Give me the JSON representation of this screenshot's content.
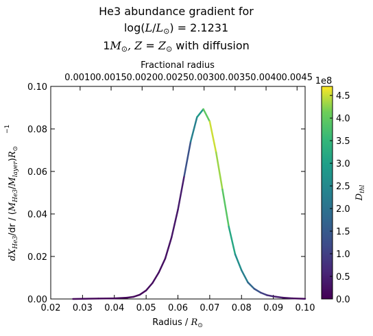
{
  "figure": {
    "title_line1": "He3 abundance gradient for",
    "title_line2_prefix": "log(",
    "title_line2_L": "L",
    "title_line2_sep": "/",
    "title_line2_Lsun": "L",
    "title_line2_sun": "⊙",
    "title_line2_suffix": ") = 2.1231",
    "title_line3_mass": "1",
    "title_line3_M": "M",
    "title_line3_sun": "⊙",
    "title_line3_Z": ", Z",
    "title_line3_eq": " = ",
    "title_line3_Zsun": "Z",
    "title_line3_sun2": "⊙",
    "title_line3_suffix": " with diffusion"
  },
  "axes": {
    "xlabel_text": "Radius / ",
    "xlabel_R": "R",
    "xlabel_sun": "⊙",
    "ylabel_full": "dX",
    "ylabel_sub": "He3",
    "ylabel_rest": "/dr / (",
    "ylabel_M": "M",
    "ylabel_He3": "He3",
    "ylabel_slash": "/",
    "ylabel_Mlayer": "M",
    "ylabel_layer": "layer",
    "ylabel_close": ")",
    "ylabel_R": "R",
    "ylabel_sun": "⊙",
    "ylabel_exp": "−1",
    "top_label": "Fractional radius",
    "colorbar_label": "D",
    "colorbar_label_sub": "thl",
    "colorbar_offset": "1e8"
  },
  "chart_data": {
    "type": "line",
    "title": "He3 abundance gradient for log(L/L⊙) = 2.1231, 1M⊙, Z = Z⊙ with diffusion",
    "xlabel": "Radius / R⊙",
    "ylabel": "dX_He3/dr / (M_He3/M_layer)R⊙^−1",
    "top_xlabel": "Fractional radius",
    "xlim": [
      0.02,
      0.1
    ],
    "ylim": [
      0.0,
      0.1
    ],
    "top_xlim": [
      0.000526,
      0.00463
    ],
    "x_ticks": [
      "0.02",
      "0.03",
      "0.04",
      "0.05",
      "0.06",
      "0.07",
      "0.08",
      "0.09",
      "0.10"
    ],
    "y_ticks": [
      "0.00",
      "0.02",
      "0.04",
      "0.06",
      "0.08",
      "0.10"
    ],
    "top_ticks": [
      "0.0010",
      "0.0015",
      "0.0020",
      "0.0025",
      "0.0030",
      "0.0035",
      "0.0040",
      "0.0045"
    ],
    "colorbar": {
      "label": "D_thl",
      "offset": "1e8",
      "range": [
        0.0,
        4.7
      ],
      "ticks": [
        "0.0",
        "0.5",
        "1.0",
        "1.5",
        "2.0",
        "2.5",
        "3.0",
        "3.5",
        "4.0",
        "4.5"
      ],
      "colormap": "viridis"
    },
    "series": [
      {
        "x": [
          0.027,
          0.03,
          0.035,
          0.04,
          0.044,
          0.046,
          0.048,
          0.05,
          0.052,
          0.054,
          0.056,
          0.058,
          0.06,
          0.062,
          0.064,
          0.066,
          0.068,
          0.07,
          0.072,
          0.074,
          0.076,
          0.078,
          0.08,
          0.082,
          0.084,
          0.086,
          0.088,
          0.09,
          0.093,
          0.096,
          0.1
        ],
        "y": [
          0.0,
          0.0001,
          0.0002,
          0.0003,
          0.0006,
          0.001,
          0.002,
          0.004,
          0.0075,
          0.0125,
          0.019,
          0.029,
          0.042,
          0.058,
          0.074,
          0.0855,
          0.0893,
          0.0835,
          0.069,
          0.0515,
          0.034,
          0.021,
          0.0135,
          0.0078,
          0.0048,
          0.003,
          0.0018,
          0.0012,
          0.0006,
          0.0003,
          0.0001
        ],
        "color_value": [
          0.1,
          0.1,
          0.1,
          0.1,
          0.1,
          0.1,
          0.12,
          0.15,
          0.2,
          0.2,
          0.22,
          0.3,
          0.35,
          0.45,
          2.2,
          2.4,
          3.3,
          4.6,
          4.4,
          4.2,
          3.6,
          2.7,
          2.5,
          2.0,
          1.5,
          1.2,
          0.8,
          0.5,
          0.3,
          0.2,
          0.1
        ]
      }
    ]
  }
}
